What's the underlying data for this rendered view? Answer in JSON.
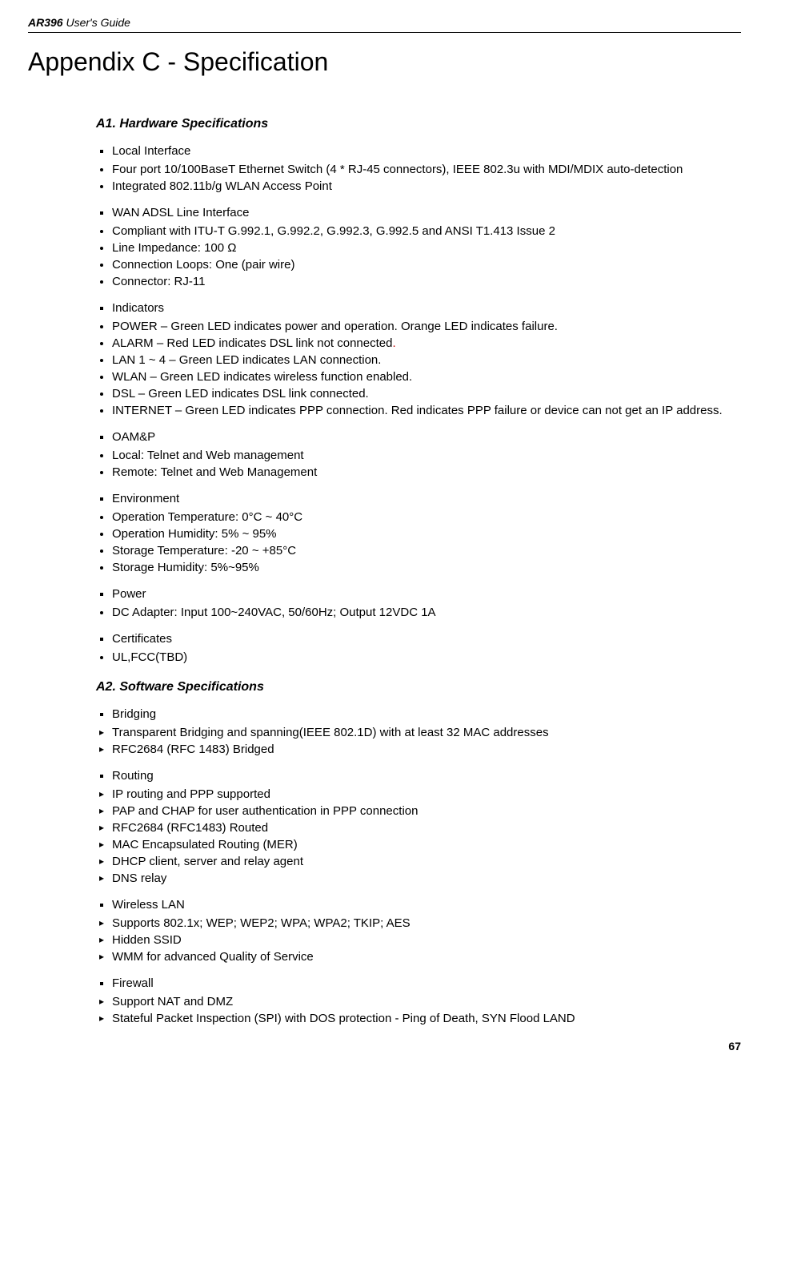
{
  "header": {
    "model": "AR396",
    "guide": " User's Guide"
  },
  "title": "Appendix C - Specification",
  "a1": {
    "heading": "A1.    Hardware Specifications",
    "local_interface": {
      "label": "Local Interface",
      "items": [
        "Four port 10/100BaseT Ethernet Switch (4 * RJ-45 connectors), IEEE 802.3u with MDI/MDIX auto-detection",
        "Integrated 802.11b/g WLAN Access Point"
      ]
    },
    "wan": {
      "label": "WAN ADSL Line Interface",
      "items": [
        "Compliant with ITU-T G.992.1, G.992.2, G.992.3, G.992.5 and ANSI T1.413 Issue 2",
        "Line Impedance: 100 Ω",
        "Connection Loops: One (pair wire)",
        "Connector: RJ-11"
      ]
    },
    "indicators": {
      "label": "Indicators",
      "items": [
        "POWER – Green LED indicates power and operation. Orange LED indicates failure.",
        "ALARM – Red LED indicates DSL link not connected.",
        "LAN 1 ~ 4 – Green LED indicates LAN connection.",
        "WLAN – Green LED indicates wireless function enabled.",
        "DSL – Green LED indicates DSL link connected.",
        "INTERNET – Green LED indicates PPP connection. Red indicates PPP failure or device can not get an IP address."
      ]
    },
    "oam": {
      "label": "OAM&P",
      "items": [
        "Local: Telnet and Web management",
        "Remote: Telnet and Web Management"
      ]
    },
    "env": {
      "label": "Environment",
      "items": [
        "Operation Temperature: 0°C ~ 40°C",
        "Operation Humidity: 5% ~ 95%",
        "Storage Temperature: -20 ~ +85°C",
        "Storage Humidity: 5%~95%"
      ]
    },
    "power": {
      "label": "Power",
      "items": [
        "DC Adapter: Input 100~240VAC, 50/60Hz; Output 12VDC 1A"
      ]
    },
    "cert": {
      "label": "Certificates",
      "items": [
        "UL,FCC(TBD)"
      ]
    }
  },
  "a2": {
    "heading": "A2.    Software Specifications",
    "bridging": {
      "label": "Bridging",
      "items": [
        "Transparent Bridging and spanning(IEEE 802.1D) with at least 32 MAC addresses",
        "RFC2684 (RFC 1483) Bridged"
      ]
    },
    "routing": {
      "label": "Routing",
      "items": [
        "IP routing and PPP supported",
        "PAP and CHAP for user authentication in PPP connection",
        "RFC2684 (RFC1483) Routed",
        "MAC Encapsulated Routing (MER)",
        "DHCP client, server and relay agent",
        "DNS relay"
      ]
    },
    "wlan": {
      "label": "Wireless LAN",
      "items": [
        "Supports 802.1x; WEP; WEP2; WPA; WPA2; TKIP; AES",
        "Hidden SSID",
        "WMM for advanced Quality of Service"
      ]
    },
    "firewall": {
      "label": "Firewall",
      "items": [
        "Support NAT and DMZ",
        "Stateful Packet Inspection (SPI) with DOS protection - Ping of Death, SYN Flood LAND"
      ]
    }
  },
  "page_number": "67"
}
